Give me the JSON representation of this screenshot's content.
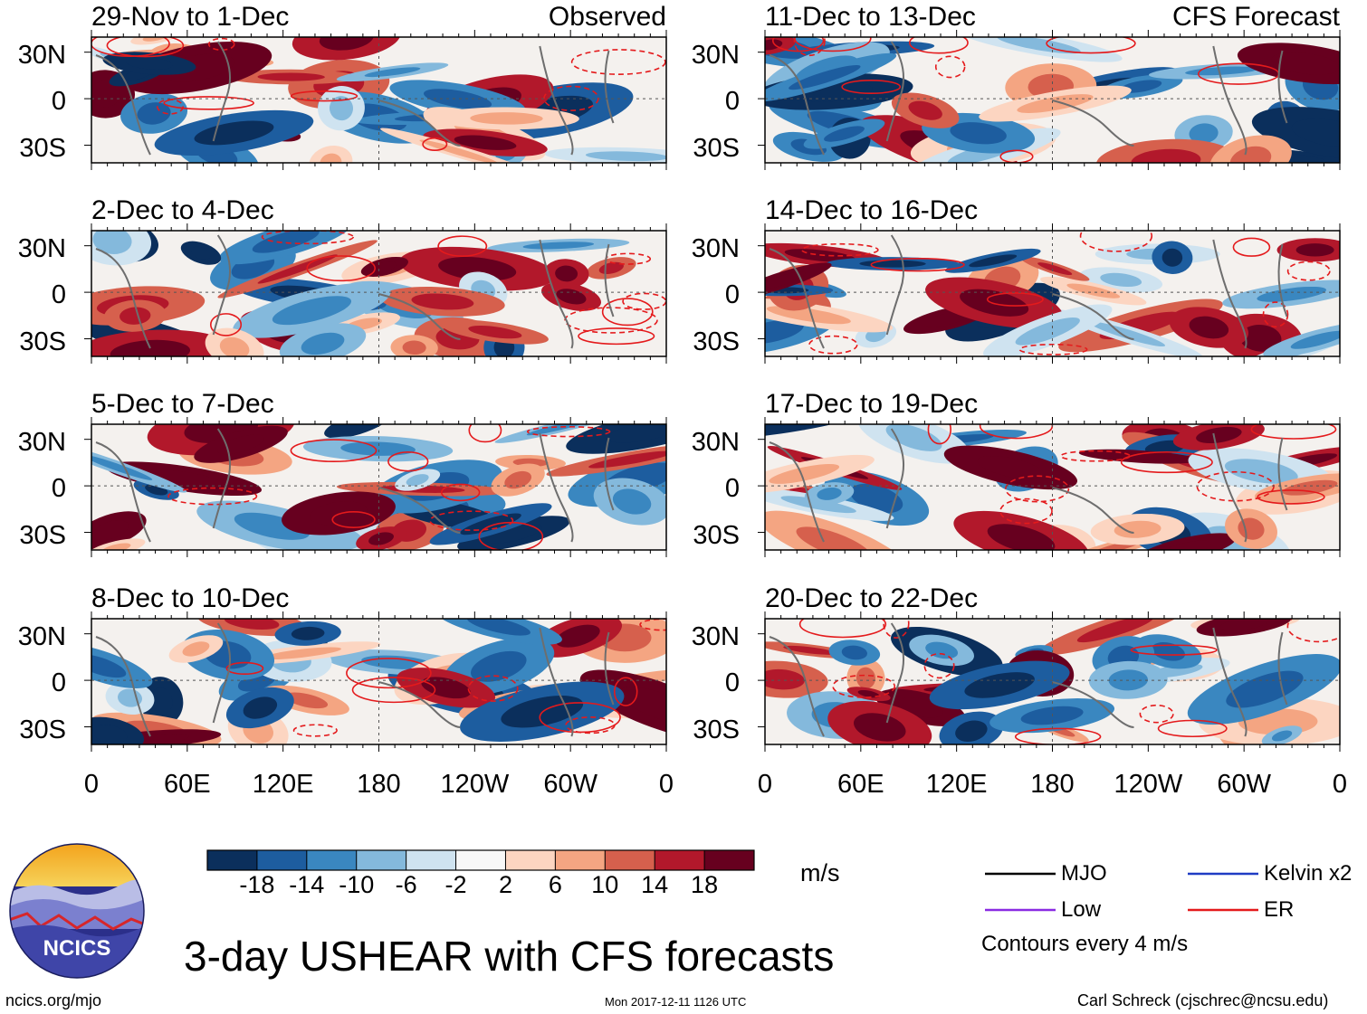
{
  "chart_data": {
    "type": "heatmap",
    "title": "3-day USHEAR with CFS forecasts",
    "units": "m/s",
    "lat_ticks": [
      "30N",
      "0",
      "30S"
    ],
    "lon_ticks": [
      "0",
      "60E",
      "120E",
      "180",
      "120W",
      "60W",
      "0"
    ],
    "panels": [
      {
        "period": "29-Nov to 1-Dec",
        "tag": "Observed",
        "seed": 3
      },
      {
        "period": "2-Dec to 4-Dec",
        "tag": "",
        "seed": 11
      },
      {
        "period": "5-Dec to 7-Dec",
        "tag": "",
        "seed": 19
      },
      {
        "period": "8-Dec to 10-Dec",
        "tag": "",
        "seed": 27
      },
      {
        "period": "11-Dec to 13-Dec",
        "tag": "CFS Forecast",
        "seed": 35
      },
      {
        "period": "14-Dec to 16-Dec",
        "tag": "",
        "seed": 43
      },
      {
        "period": "17-Dec to 19-Dec",
        "tag": "",
        "seed": 51
      },
      {
        "period": "20-Dec to 22-Dec",
        "tag": "",
        "seed": 59
      }
    ],
    "colorbar": {
      "labels": [
        "-18",
        "-14",
        "-10",
        "-6",
        "-2",
        "2",
        "6",
        "10",
        "14",
        "18"
      ],
      "colors": [
        "#0b2f5c",
        "#1d5d9f",
        "#3a87c0",
        "#84b9dc",
        "#cfe3f0",
        "#f7f7f7",
        "#fcd5c1",
        "#f4a582",
        "#d6604d",
        "#b2182b",
        "#67001f"
      ]
    },
    "legend": [
      {
        "label": "MJO",
        "color": "#000000"
      },
      {
        "label": "Kelvin x2",
        "color": "#1f3cc4"
      },
      {
        "label": "Low",
        "color": "#8a2be2"
      },
      {
        "label": "ER",
        "color": "#e41a1c"
      }
    ],
    "contour_note": "Contours every 4 m/s"
  },
  "footer": {
    "logo_text": "NCICS",
    "url": "ncics.org/mjo",
    "timestamp": "Mon 2017-12-11 1126 UTC",
    "credit": "Carl Schreck (cjschrec@ncsu.edu)"
  }
}
